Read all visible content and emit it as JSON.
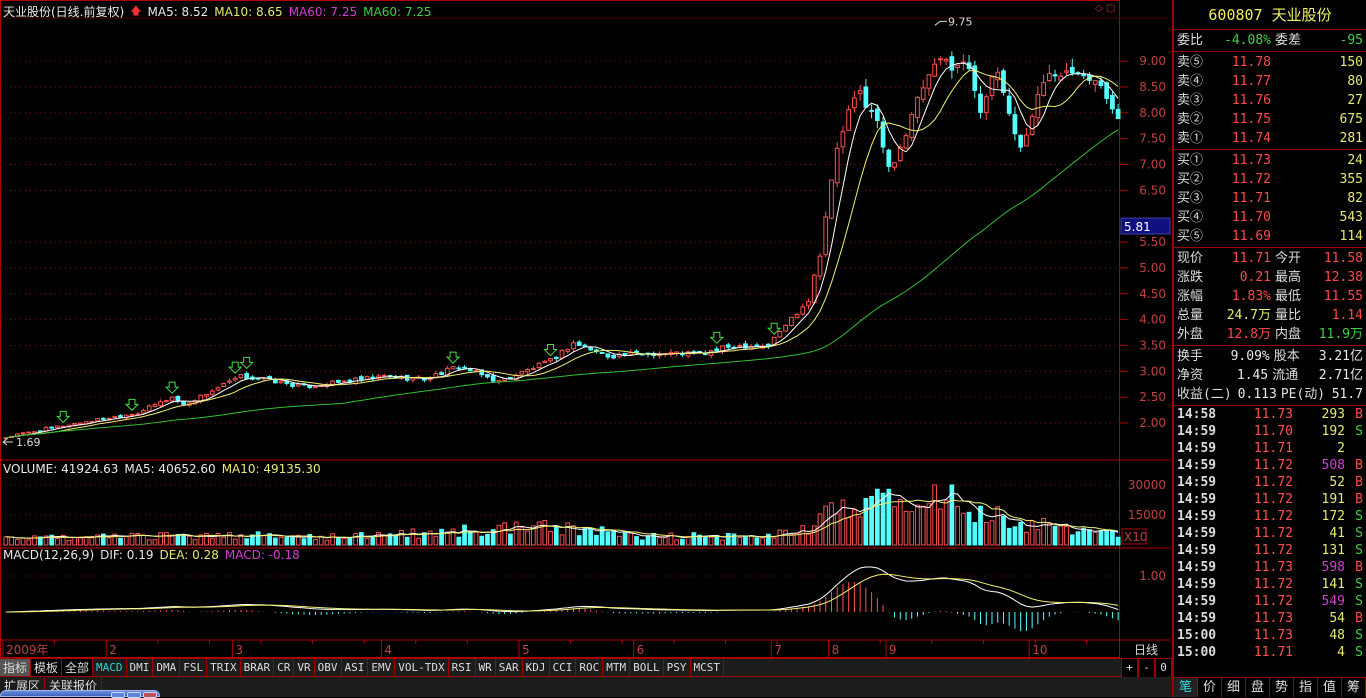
{
  "header": {
    "title": "天业股份(日线.前复权)",
    "ma5": "MA5: 8.52",
    "ma10": "MA10: 8.65",
    "ma60a": "MA60: 7.25",
    "ma60b": "MA60: 7.25"
  },
  "price_axis": [
    "9.00",
    "8.50",
    "8.00",
    "7.50",
    "7.00",
    "6.50",
    "5.50",
    "5.00",
    "4.50",
    "4.00",
    "3.50",
    "3.00",
    "2.50",
    "2.00"
  ],
  "cursor_price": "5.81",
  "low_label": "1.69",
  "high_label": "9.75",
  "volume": {
    "label": "VOLUME: 41924.63",
    "ma5": "MA5: 40652.60",
    "ma10": "MA10: 49135.30",
    "axis": [
      "30000",
      "15000"
    ],
    "unit": "X10"
  },
  "macd": {
    "label": "MACD(12,26,9)",
    "dif": "DIF: 0.19",
    "dea": "DEA: 0.28",
    "macd": "MACD: -0.18",
    "axis": [
      "1.00"
    ]
  },
  "x_axis": [
    {
      "label": "2009年",
      "index": 0
    },
    {
      "label": "2",
      "index": 18
    },
    {
      "label": "3",
      "index": 40
    },
    {
      "label": "4",
      "index": 66
    },
    {
      "label": "5",
      "index": 90
    },
    {
      "label": "6",
      "index": 110
    },
    {
      "label": "7",
      "index": 134
    },
    {
      "label": "8",
      "index": 144
    },
    {
      "label": "9",
      "index": 154
    },
    {
      "label": "10",
      "index": 179
    }
  ],
  "period": "日线",
  "tabs": [
    "指标",
    "模板",
    "全部",
    "MACD",
    "DMI",
    "DMA",
    "FSL",
    "TRIX",
    "BRAR",
    "CR",
    "VR",
    "OBV",
    "ASI",
    "EMV",
    "VOL-TDX",
    "RSI",
    "WR",
    "SAR",
    "KDJ",
    "CCI",
    "ROC",
    "MTM",
    "BOLL",
    "PSY",
    "MCST"
  ],
  "zoom_buttons": [
    "+",
    "-",
    "0"
  ],
  "bottom_tabs": [
    "扩展区",
    "关联报价"
  ],
  "quote": {
    "title": "600807 天业股份",
    "ratio": {
      "l1": "委比",
      "v1": "-4.08%",
      "l2": "委差",
      "v2": "-95"
    },
    "sell": [
      {
        "l": "卖⑤",
        "p": "11.78",
        "v": "150"
      },
      {
        "l": "卖④",
        "p": "11.77",
        "v": "80"
      },
      {
        "l": "卖③",
        "p": "11.76",
        "v": "27"
      },
      {
        "l": "卖②",
        "p": "11.75",
        "v": "675"
      },
      {
        "l": "卖①",
        "p": "11.74",
        "v": "281"
      }
    ],
    "buy": [
      {
        "l": "买①",
        "p": "11.73",
        "v": "24"
      },
      {
        "l": "买②",
        "p": "11.72",
        "v": "355"
      },
      {
        "l": "买③",
        "p": "11.71",
        "v": "82"
      },
      {
        "l": "买④",
        "p": "11.70",
        "v": "543"
      },
      {
        "l": "买⑤",
        "p": "11.69",
        "v": "114"
      }
    ],
    "stats": [
      {
        "l1": "现价",
        "v1": "11.71",
        "c1": "r",
        "l2": "今开",
        "v2": "11.58",
        "c2": "r"
      },
      {
        "l1": "涨跌",
        "v1": "0.21",
        "c1": "r",
        "l2": "最高",
        "v2": "12.38",
        "c2": "r"
      },
      {
        "l1": "涨幅",
        "v1": "1.83%",
        "c1": "r",
        "l2": "最低",
        "v2": "11.55",
        "c2": "r"
      },
      {
        "l1": "总量",
        "v1": "24.7万",
        "c1": "y",
        "l2": "量比",
        "v2": "1.14",
        "c2": "r"
      },
      {
        "l1": "外盘",
        "v1": "12.8万",
        "c1": "r",
        "l2": "内盘",
        "v2": "11.9万",
        "c2": "g"
      }
    ],
    "finance": [
      {
        "l1": "换手",
        "v1": "9.09%",
        "l2": "股本",
        "v2": "3.21亿"
      },
      {
        "l1": "净资",
        "v1": "1.45",
        "l2": "流通",
        "v2": "2.71亿"
      },
      {
        "l1": "收益(二)",
        "v1": "0.113",
        "l2": "PE(动)",
        "v2": "51.7"
      }
    ],
    "trades": [
      {
        "t": "14:58",
        "p": "11.73",
        "v": "293",
        "s": "B"
      },
      {
        "t": "14:59",
        "p": "11.70",
        "v": "192",
        "s": "S"
      },
      {
        "t": "14:59",
        "p": "11.71",
        "v": "2",
        "s": ""
      },
      {
        "t": "14:59",
        "p": "11.72",
        "v": "508",
        "s": "B"
      },
      {
        "t": "14:59",
        "p": "11.72",
        "v": "52",
        "s": "B"
      },
      {
        "t": "14:59",
        "p": "11.72",
        "v": "191",
        "s": "B"
      },
      {
        "t": "14:59",
        "p": "11.72",
        "v": "172",
        "s": "S"
      },
      {
        "t": "14:59",
        "p": "11.72",
        "v": "41",
        "s": "S"
      },
      {
        "t": "14:59",
        "p": "11.72",
        "v": "131",
        "s": "S"
      },
      {
        "t": "14:59",
        "p": "11.73",
        "v": "598",
        "s": "B"
      },
      {
        "t": "14:59",
        "p": "11.72",
        "v": "141",
        "s": "S"
      },
      {
        "t": "14:59",
        "p": "11.72",
        "v": "549",
        "s": "S"
      },
      {
        "t": "14:59",
        "p": "11.73",
        "v": "54",
        "s": "B"
      },
      {
        "t": "15:00",
        "p": "11.73",
        "v": "48",
        "s": "S"
      },
      {
        "t": "15:00",
        "p": "11.71",
        "v": "4",
        "s": "S"
      }
    ],
    "tabs": [
      "笔",
      "价",
      "细",
      "盘",
      "势",
      "指",
      "值",
      "筹"
    ]
  },
  "colors": {
    "up": "#ff5050",
    "down": "#54ffff",
    "ma5": "#ffffff",
    "ma10": "#f0f070",
    "ma60": "#30c030",
    "grid": "#801010",
    "frame": "#b00000"
  },
  "chart_data": {
    "type": "candlestick",
    "days": 195,
    "ylim": [
      1.6,
      9.9
    ],
    "close_anchors": [
      [
        0,
        1.72
      ],
      [
        1,
        1.75
      ],
      [
        10,
        1.95
      ],
      [
        23,
        2.2
      ],
      [
        29,
        2.5
      ],
      [
        31,
        2.35
      ],
      [
        41,
        2.9
      ],
      [
        45,
        2.85
      ],
      [
        52,
        2.7
      ],
      [
        66,
        2.9
      ],
      [
        73,
        2.85
      ],
      [
        79,
        3.1
      ],
      [
        86,
        2.8
      ],
      [
        95,
        3.2
      ],
      [
        99,
        3.55
      ],
      [
        105,
        3.3
      ],
      [
        113,
        3.35
      ],
      [
        122,
        3.35
      ],
      [
        127,
        3.5
      ],
      [
        133,
        3.5
      ],
      [
        136,
        3.9
      ],
      [
        140,
        4.4
      ],
      [
        142,
        5.3
      ],
      [
        143,
        6.0
      ],
      [
        145,
        7.3
      ],
      [
        147,
        8.0
      ],
      [
        149,
        8.4
      ],
      [
        152,
        7.8
      ],
      [
        154,
        6.9
      ],
      [
        157,
        7.6
      ],
      [
        160,
        8.5
      ],
      [
        163,
        9.0
      ],
      [
        168,
        8.9
      ],
      [
        170,
        8.1
      ],
      [
        173,
        8.8
      ],
      [
        175,
        8.0
      ],
      [
        177,
        7.3
      ],
      [
        180,
        8.3
      ],
      [
        182,
        8.8
      ],
      [
        187,
        8.9
      ],
      [
        190,
        8.6
      ],
      [
        194,
        8.0
      ]
    ],
    "volume_anchors": [
      [
        0,
        3000
      ],
      [
        40,
        5000
      ],
      [
        60,
        4000
      ],
      [
        95,
        9000
      ],
      [
        110,
        4500
      ],
      [
        130,
        4000
      ],
      [
        140,
        8000
      ],
      [
        149,
        25000
      ],
      [
        160,
        15000
      ],
      [
        163,
        28000
      ],
      [
        175,
        12000
      ],
      [
        194,
        5000
      ]
    ],
    "volume_ylim": [
      0,
      36000
    ],
    "macd_ylim": [
      -0.75,
      1.3
    ],
    "signals": [
      10,
      22,
      29,
      40,
      42,
      78,
      95,
      124,
      134
    ],
    "ma_periods": [
      5,
      10,
      60
    ]
  }
}
